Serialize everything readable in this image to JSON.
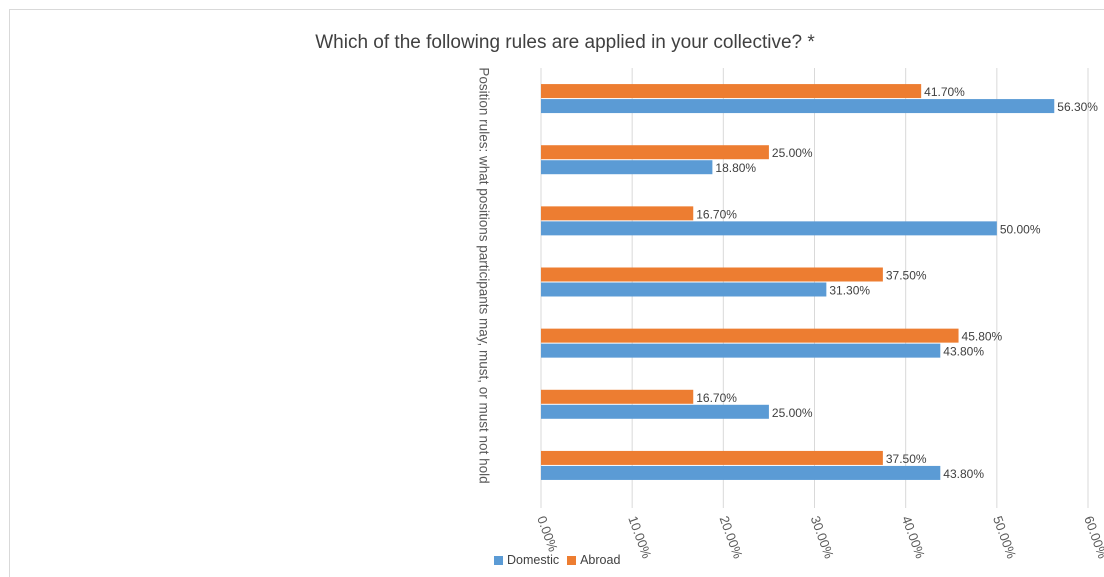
{
  "chart_data": {
    "type": "bar",
    "orientation": "horizontal",
    "title": "Which of the following rules are applied in your collective? *",
    "ylabel": "Position rules: what positions participants may, must, or must not hold",
    "xlabel": "",
    "xlim": [
      0,
      60
    ],
    "x_ticks": [
      "0.00%",
      "10.00%",
      "20.00%",
      "30.00%",
      "40.00%",
      "50.00%",
      "60.00%"
    ],
    "grid": true,
    "legend_position": "bottom",
    "categories": [
      "",
      "",
      "",
      "",
      "",
      "",
      ""
    ],
    "series": [
      {
        "name": "Domestic",
        "color": "#5b9bd5",
        "values": [
          56.3,
          18.8,
          50.0,
          31.3,
          43.8,
          25.0,
          43.8
        ],
        "labels": [
          "56.30%",
          "18.80%",
          "50.00%",
          "31.30%",
          "43.80%",
          "25.00%",
          "43.80%"
        ]
      },
      {
        "name": "Abroad",
        "color": "#ed7d31",
        "values": [
          41.7,
          25.0,
          16.7,
          37.5,
          45.8,
          16.7,
          37.5
        ],
        "labels": [
          "41.70%",
          "25.00%",
          "16.70%",
          "37.50%",
          "45.80%",
          "16.70%",
          "37.50%"
        ]
      }
    ]
  }
}
